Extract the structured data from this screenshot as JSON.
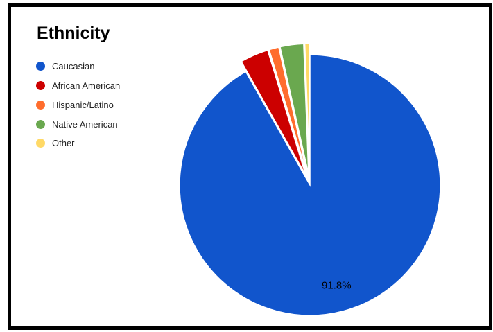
{
  "chart_data": {
    "type": "pie",
    "title": "Ethnicity",
    "legend_position": "left",
    "slices": [
      {
        "label": "Caucasian",
        "value": 91.8,
        "color": "#1155cc",
        "data_label": "91.8%",
        "exploded": false
      },
      {
        "label": "African American",
        "value": 3.5,
        "color": "#cc0000",
        "data_label": "",
        "exploded": true
      },
      {
        "label": "Hispanic/Latino",
        "value": 1.2,
        "color": "#ff6d2d",
        "data_label": "",
        "exploded": true
      },
      {
        "label": "Native American",
        "value": 2.9,
        "color": "#6aa84f",
        "data_label": "",
        "exploded": true
      },
      {
        "label": "Other",
        "value": 0.6,
        "color": "#ffd966",
        "data_label": "",
        "exploded": true
      }
    ]
  }
}
